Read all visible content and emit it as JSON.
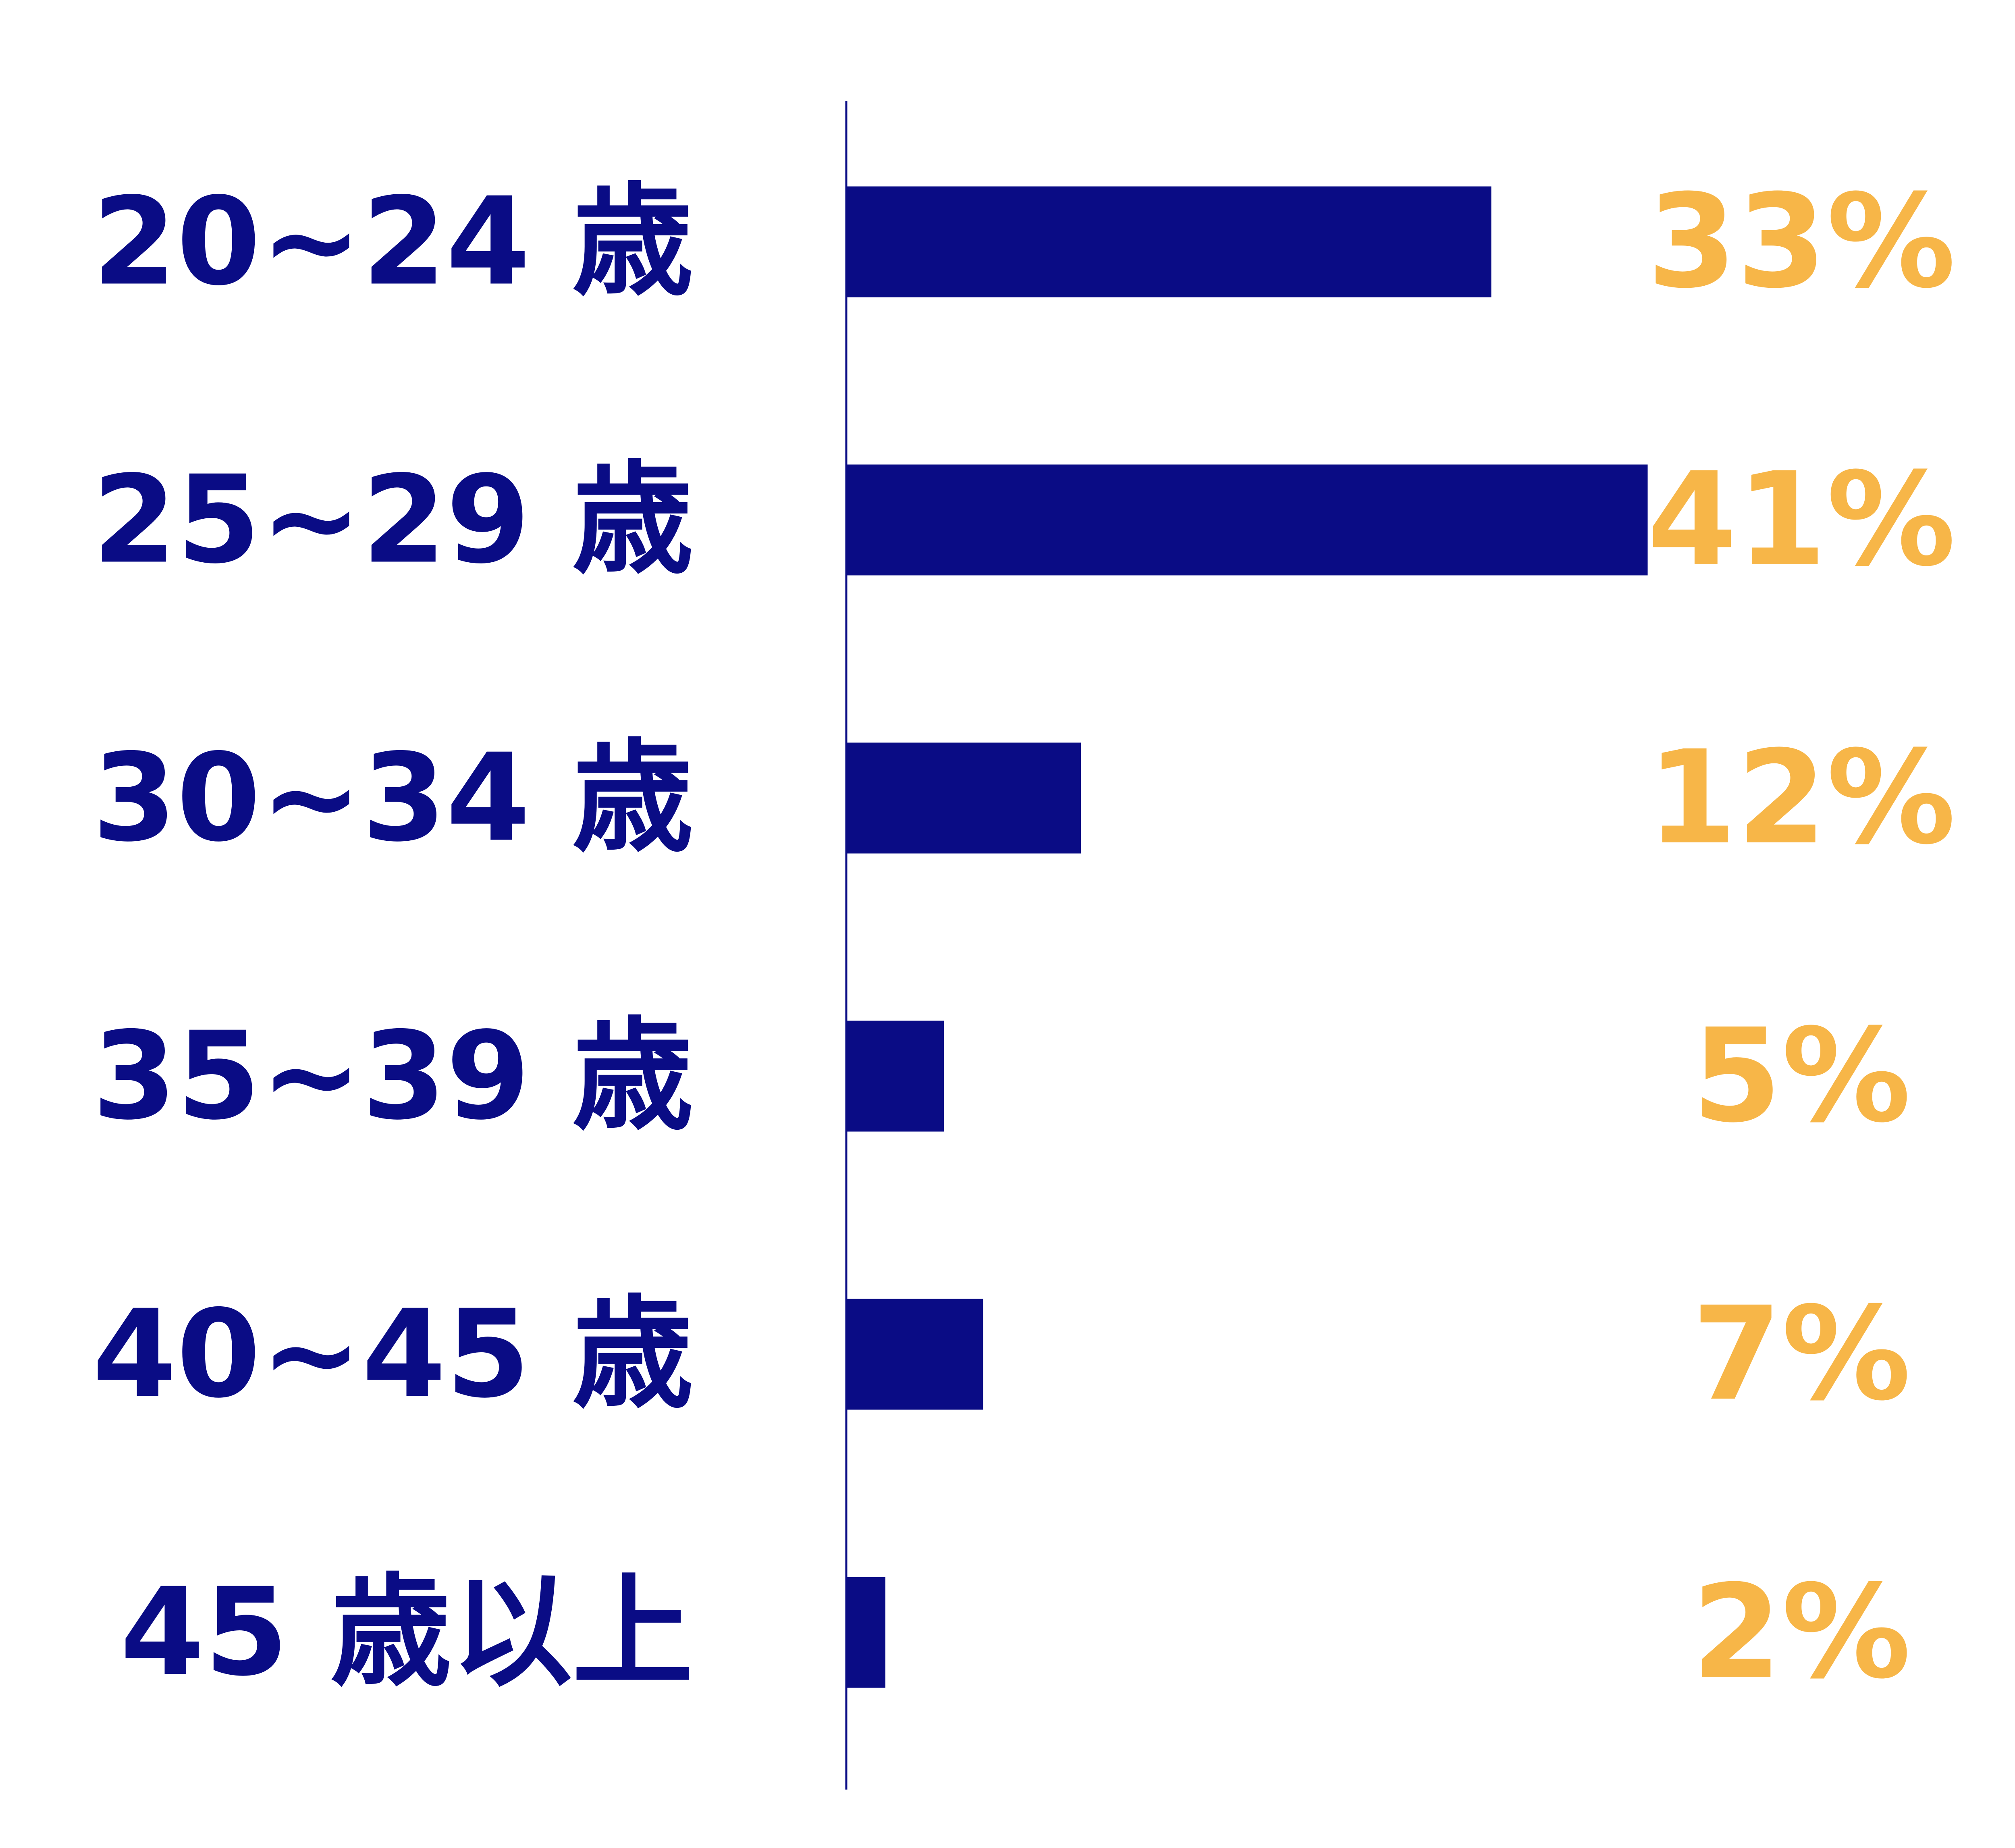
{
  "chart_data": {
    "type": "bar",
    "orientation": "horizontal",
    "categories": [
      "20~24 歳",
      "25~29 歳",
      "30~34 歳",
      "35~39 歳",
      "40~45 歳",
      "45 歳以上"
    ],
    "values": [
      33,
      41,
      12,
      5,
      7,
      2
    ],
    "value_labels": [
      "33%",
      "41%",
      "12%",
      "5%",
      "7%",
      "2%"
    ],
    "unit": "%",
    "title": "",
    "xlabel": "",
    "ylabel": "",
    "xlim": [
      0,
      100
    ],
    "grid": false,
    "legend": "none",
    "colors": {
      "bar": "#0A0C85",
      "category_text": "#0A0C85",
      "value_text": "#F7B648",
      "axis": "#0A0C85"
    }
  }
}
